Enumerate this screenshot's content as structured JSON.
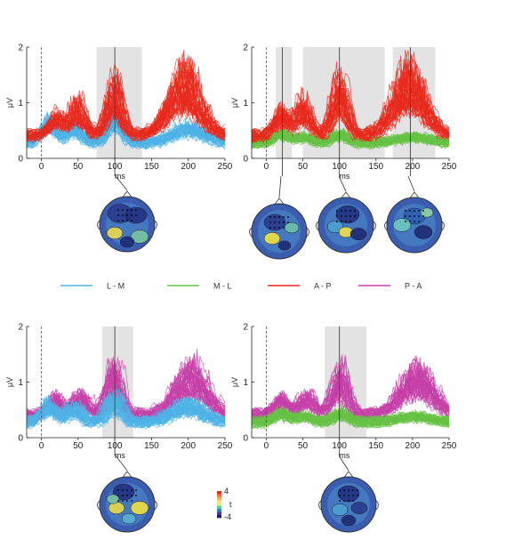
{
  "figure": {
    "legend": [
      {
        "label": "L - M",
        "color": "#4db3e6"
      },
      {
        "label": "M - L",
        "color": "#66c244"
      },
      {
        "label": "A - P",
        "color": "#e8291c"
      },
      {
        "label": "P - A",
        "color": "#c63fa8"
      }
    ],
    "colorbar": {
      "max_label": "4",
      "mid_label": "t",
      "min_label": "-4"
    }
  },
  "chart_data": [
    {
      "type": "line",
      "panel": "top-left",
      "xlabel": "ms",
      "ylabel": "μV",
      "xlim": [
        -20,
        250
      ],
      "ylim": [
        0,
        2
      ],
      "xticks": [
        "0",
        "50",
        "100",
        "150",
        "200",
        "250"
      ],
      "yticks": [
        "0",
        "1",
        "2"
      ],
      "shaded": [
        [
          75,
          137
        ]
      ],
      "markers": [
        100
      ],
      "series": [
        {
          "name": "L - M",
          "color": "#4db3e6",
          "kind": "base",
          "peaks": [
            [
              10,
              0.65
            ],
            [
              45,
              0.55
            ],
            [
              100,
              0.75
            ],
            [
              200,
              0.55
            ]
          ]
        },
        {
          "name": "A - P",
          "color": "#e8291c",
          "kind": "effect",
          "peaks": [
            [
              20,
              0.75
            ],
            [
              50,
              0.95
            ],
            [
              100,
              1.3
            ],
            [
              195,
              1.45
            ]
          ]
        }
      ]
    },
    {
      "type": "line",
      "panel": "top-right",
      "xlabel": "ms",
      "ylabel": "μV",
      "xlim": [
        -20,
        250
      ],
      "ylim": [
        0,
        2
      ],
      "xticks": [
        "0",
        "50",
        "100",
        "150",
        "200",
        "250"
      ],
      "yticks": [
        "0",
        "1",
        "2"
      ],
      "shaded": [
        [
          13,
          35
        ],
        [
          50,
          162
        ],
        [
          173,
          231
        ]
      ],
      "markers": [
        22,
        100,
        197
      ],
      "series": [
        {
          "name": "M - L",
          "color": "#66c244",
          "kind": "base",
          "peaks": [
            [
              20,
              0.45
            ],
            [
              50,
              0.4
            ],
            [
              100,
              0.45
            ],
            [
              200,
              0.4
            ]
          ]
        },
        {
          "name": "A - P",
          "color": "#e8291c",
          "kind": "effect",
          "peaks": [
            [
              20,
              0.8
            ],
            [
              50,
              0.95
            ],
            [
              100,
              1.3
            ],
            [
              195,
              1.45
            ]
          ]
        }
      ]
    },
    {
      "type": "line",
      "panel": "bottom-left",
      "xlabel": "ms",
      "ylabel": "μV",
      "xlim": [
        -20,
        250
      ],
      "ylim": [
        0,
        2
      ],
      "xticks": [
        "0",
        "50",
        "100",
        "150",
        "200",
        "250"
      ],
      "yticks": [
        "0",
        "1",
        "2"
      ],
      "shaded": [
        [
          83,
          125
        ]
      ],
      "markers": [
        100
      ],
      "series": [
        {
          "name": "P - A",
          "color": "#c63fa8",
          "kind": "effect",
          "peaks": [
            [
              20,
              0.7
            ],
            [
              55,
              0.75
            ],
            [
              100,
              1.15
            ],
            [
              205,
              1.15
            ]
          ]
        },
        {
          "name": "L - M",
          "color": "#4db3e6",
          "kind": "base",
          "peaks": [
            [
              10,
              0.6
            ],
            [
              45,
              0.55
            ],
            [
              100,
              0.7
            ],
            [
              200,
              0.6
            ]
          ]
        }
      ]
    },
    {
      "type": "line",
      "panel": "bottom-right",
      "xlabel": "ms",
      "ylabel": "μV",
      "xlim": [
        -20,
        250
      ],
      "ylim": [
        0,
        2
      ],
      "xticks": [
        "0",
        "50",
        "100",
        "150",
        "200",
        "250"
      ],
      "yticks": [
        "0",
        "1",
        "2"
      ],
      "shaded": [
        [
          80,
          137
        ]
      ],
      "markers": [
        100
      ],
      "series": [
        {
          "name": "P - A",
          "color": "#c63fa8",
          "kind": "effect",
          "peaks": [
            [
              20,
              0.7
            ],
            [
              55,
              0.75
            ],
            [
              100,
              1.15
            ],
            [
              205,
              1.15
            ]
          ]
        },
        {
          "name": "M - L",
          "color": "#66c244",
          "kind": "base",
          "peaks": [
            [
              20,
              0.45
            ],
            [
              50,
              0.4
            ],
            [
              100,
              0.45
            ],
            [
              200,
              0.4
            ]
          ]
        }
      ]
    }
  ]
}
